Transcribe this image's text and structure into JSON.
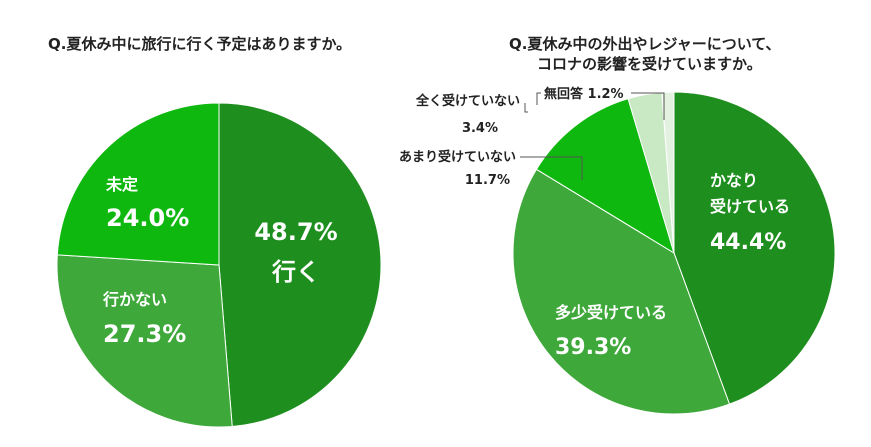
{
  "chart_data": [
    {
      "type": "pie",
      "title": "Q.夏休み中に旅行に行く予定はありますか。",
      "slices": [
        {
          "label": "行く",
          "value": 48.7,
          "display": "48.7%",
          "color": "#1e8f1e"
        },
        {
          "label": "行かない",
          "value": 27.3,
          "display": "27.3%",
          "color": "#3ea83a"
        },
        {
          "label": "未定",
          "value": 24.0,
          "display": "24.0%",
          "color": "#0fb80f"
        }
      ]
    },
    {
      "type": "pie",
      "title": [
        "Q.夏休み中の外出やレジャーについて、",
        "コロナの影響を受けていますか。"
      ],
      "slices": [
        {
          "label": [
            "かなり",
            "受けている"
          ],
          "value": 44.4,
          "display": "44.4%",
          "color": "#1e8f1e"
        },
        {
          "label": "多少受けている",
          "value": 39.3,
          "display": "39.3%",
          "color": "#3ea83a"
        },
        {
          "label": "あまり受けていない",
          "value": 11.7,
          "display": "11.7%",
          "color": "#0fb80f"
        },
        {
          "label": "全く受けていない",
          "value": 3.4,
          "display": "3.4%",
          "color": "#c9e8c4"
        },
        {
          "label": "無回答",
          "value": 1.2,
          "display": "1.2%",
          "color": "#e3f2e0"
        }
      ]
    }
  ]
}
